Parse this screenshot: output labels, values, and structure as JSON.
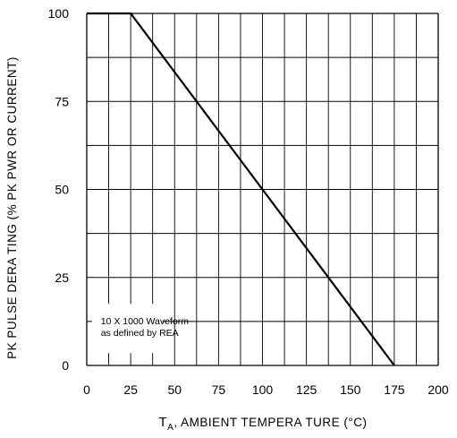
{
  "chart_data": {
    "type": "line",
    "title": "",
    "xlabel": {
      "t": "T",
      "sub": "A",
      "rest": ", AMBIENT   TEMPERA  TURE   (°C)"
    },
    "ylabel": "PK  PULSE   DERA  TING  (% PK  PWR  OR  CURRENT)",
    "xlim": [
      0,
      200
    ],
    "ylim": [
      0,
      100
    ],
    "xticks": [
      "0",
      "25",
      "50",
      "75",
      "100",
      "125",
      "150",
      "175",
      "200"
    ],
    "yticks": [
      "0",
      "25",
      "50",
      "75",
      "100"
    ],
    "grid": true,
    "annotation": {
      "lines": [
        "10 X 1000 Waveform",
        "as defined by REA"
      ]
    },
    "series": [
      {
        "points": [
          [
            0,
            100
          ],
          [
            25,
            100
          ],
          [
            175,
            0
          ]
        ]
      }
    ]
  }
}
